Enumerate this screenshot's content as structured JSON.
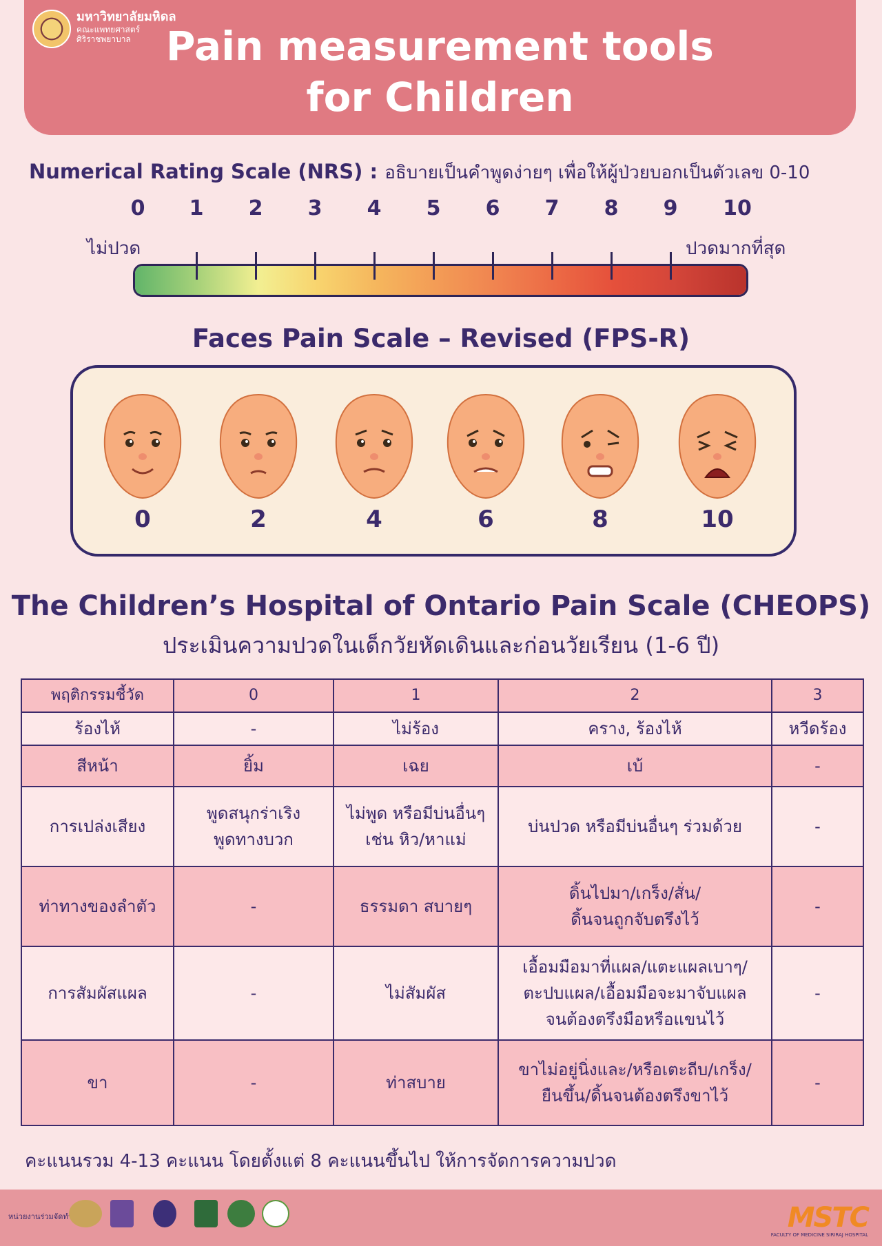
{
  "header": {
    "university": "มหาวิทยาลัยมหิดล",
    "faculty": "คณะแพทยศาสตร์",
    "hospital": "ศิริราชพยาบาล",
    "title_line1": "Pain measurement tools",
    "title_line2": "for Children"
  },
  "nrs": {
    "title": "Numerical Rating Scale (NRS) :",
    "description": "อธิบายเป็นคำพูดง่ายๆ เพื่อให้ผู้ป่วยบอกเป็นตัวเลข 0-10",
    "numbers": [
      "0",
      "1",
      "2",
      "3",
      "4",
      "5",
      "6",
      "7",
      "8",
      "9",
      "10"
    ],
    "label_min": "ไม่ปวด",
    "label_max": "ปวดมากที่สุด",
    "colors": [
      "#62b56a",
      "#a9d27a",
      "#f2ef92",
      "#f8d46e",
      "#f5b65d",
      "#f39c56",
      "#f08450",
      "#ec6a45",
      "#e5503b",
      "#d4463a",
      "#b9332c"
    ]
  },
  "fps": {
    "title": "Faces Pain Scale – Revised (FPS-R)",
    "scores": [
      "0",
      "2",
      "4",
      "6",
      "8",
      "10"
    ]
  },
  "cheops": {
    "title": "The Children’s Hospital of Ontario Pain Scale (CHEOPS)",
    "subtitle": "ประเมินความปวดในเด็กวัยหัดเดินและก่อนวัยเรียน (1-6 ปี)",
    "header": [
      "พฤติกรรมชี้วัด",
      "0",
      "1",
      "2",
      "3"
    ],
    "rows": [
      [
        "ร้องไห้",
        "-",
        "ไม่ร้อง",
        "คราง, ร้องไห้",
        "หวีดร้อง"
      ],
      [
        "สีหน้า",
        "ยิ้ม",
        "เฉย",
        "เบ้",
        "-"
      ],
      [
        "การเปล่งเสียง",
        "พูดสนุกร่าเริง\nพูดทางบวก",
        "ไม่พูด หรือมีบ่นอื่นๆ\nเช่น หิว/หาแม่",
        "บ่นปวด หรือมีบ่นอื่นๆ ร่วมด้วย",
        "-"
      ],
      [
        "ท่าทางของลำตัว",
        "-",
        "ธรรมดา สบายๆ",
        "ดิ้นไปมา/เกร็ง/สั่น/\nดิ้นจนถูกจับตรึงไว้",
        "-"
      ],
      [
        "การสัมผัสแผล",
        "-",
        "ไม่สัมผัส",
        "เอื้อมมือมาที่แผล/แตะแผลเบาๆ/\nตะปบแผล/เอื้อมมือจะมาจับแผล\nจนต้องตรึงมือหรือแขนไว้",
        "-"
      ],
      [
        "ขา",
        "-",
        "ท่าสบาย",
        "ขาไม่อยู่นิ่งและ/หรือเตะถีบ/เกร็ง/\nยืนขึ้น/ดิ้นจนต้องตรึงขาไว้",
        "-"
      ]
    ],
    "total_note": "คะแนนรวม 4-13 คะแนน โดยตั้งแต่ 8 คะแนนขึ้นไป ให้การจัดการความปวด"
  },
  "footer": {
    "organizers_label": "หน่วยงานร่วมจัดทำ",
    "brand": "MSTC",
    "brand_sub": "FACULTY OF MEDICINE SIRIRAJ HOSPITAL"
  }
}
